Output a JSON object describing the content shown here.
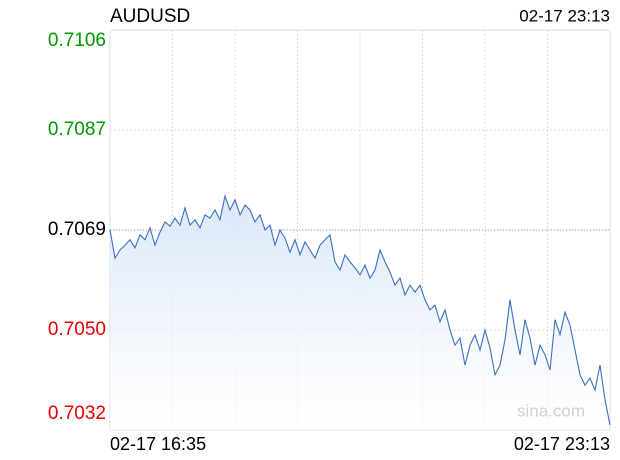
{
  "chart_data": {
    "type": "line",
    "title": "AUDUSD",
    "time": "02-17 23:13",
    "watermark": "sina.com",
    "x_labels": [
      "02-17 16:35",
      "02-17 23:13"
    ],
    "baseline": 0.7069,
    "up_color": "#009900",
    "down_color": "#e60000",
    "flat_color": "#000000",
    "color": "#3a6fc4",
    "ylim": [
      0.7032,
      0.7106
    ],
    "yticks": [
      {
        "value": 0.7106,
        "label": "0.7106"
      },
      {
        "value": 0.70875,
        "label": "0.7087"
      },
      {
        "value": 0.7069,
        "label": "0.7069"
      },
      {
        "value": 0.70505,
        "label": "0.7050"
      },
      {
        "value": 0.7032,
        "label": "0.7032"
      }
    ],
    "grid": true,
    "values": [
      0.7069,
      0.70638,
      0.70653,
      0.70662,
      0.70672,
      0.70657,
      0.70681,
      0.70672,
      0.70694,
      0.70662,
      0.70686,
      0.70705,
      0.70697,
      0.70712,
      0.70699,
      0.70731,
      0.70699,
      0.70709,
      0.70694,
      0.70718,
      0.70712,
      0.70727,
      0.70709,
      0.70753,
      0.70727,
      0.70746,
      0.70718,
      0.70736,
      0.70727,
      0.70705,
      0.70718,
      0.7069,
      0.70699,
      0.70662,
      0.7069,
      0.70675,
      0.70649,
      0.70672,
      0.70644,
      0.70668,
      0.70653,
      0.70638,
      0.70662,
      0.70672,
      0.70681,
      0.70631,
      0.70616,
      0.70644,
      0.70631,
      0.7062,
      0.70607,
      0.70625,
      0.70601,
      0.70616,
      0.70653,
      0.70631,
      0.70612,
      0.70588,
      0.70601,
      0.7057,
      0.70588,
      0.70575,
      0.70588,
      0.70561,
      0.70542,
      0.70551,
      0.7052,
      0.70542,
      0.70505,
      0.70477,
      0.7049,
      0.7044,
      0.70477,
      0.70496,
      0.70468,
      0.70505,
      0.70472,
      0.70422,
      0.7044,
      0.70487,
      0.70561,
      0.70505,
      0.70459,
      0.70524,
      0.7049,
      0.7044,
      0.70477,
      0.70459,
      0.70431,
      0.70524,
      0.70496,
      0.70538,
      0.70514,
      0.70468,
      0.70422,
      0.70403,
      0.70416,
      0.70394,
      0.7044,
      0.70376,
      0.70329
    ]
  }
}
